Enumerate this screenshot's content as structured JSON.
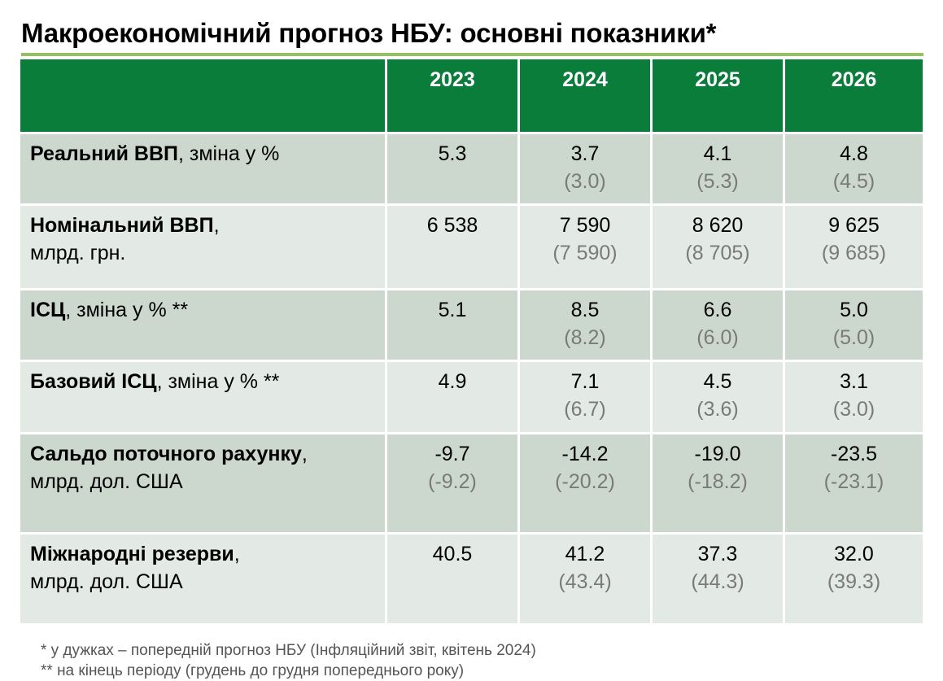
{
  "title": "Макроекономічний прогноз НБУ: основні показники*",
  "colors": {
    "header": "#0a7d3b",
    "rule": "#92c35d",
    "row_dark": "#ccd8cd",
    "row_light": "#e3e9e4"
  },
  "years": [
    "2023",
    "2024",
    "2025",
    "2026"
  ],
  "rows": [
    {
      "name": "Реальний ВВП",
      "unit_inline": ", зміна у %",
      "unit_line": "",
      "values": [
        "5.3",
        "3.7",
        "4.1",
        "4.8"
      ],
      "previous": [
        "",
        "(3.0)",
        "(5.3)",
        "(4.5)"
      ]
    },
    {
      "name": "Номінальний ВВП",
      "unit_inline": ",",
      "unit_line": "млрд. грн.",
      "values": [
        "6 538",
        "7 590",
        "8 620",
        "9 625"
      ],
      "previous": [
        "",
        "(7 590)",
        "(8 705)",
        "(9 685)"
      ]
    },
    {
      "name": "ІСЦ",
      "unit_inline": ", зміна у % **",
      "unit_line": "",
      "values": [
        "5.1",
        "8.5",
        "6.6",
        "5.0"
      ],
      "previous": [
        "",
        "(8.2)",
        "(6.0)",
        "(5.0)"
      ]
    },
    {
      "name": "Базовий ІСЦ",
      "unit_inline": ", зміна у % **",
      "unit_line": "",
      "values": [
        "4.9",
        "7.1",
        "4.5",
        "3.1"
      ],
      "previous": [
        "",
        "(6.7)",
        "(3.6)",
        "(3.0)"
      ]
    },
    {
      "name": "Сальдо поточного рахунку",
      "unit_inline": ",",
      "unit_line": "млрд. дол. США",
      "values": [
        "-9.7",
        "-14.2",
        "-19.0",
        "-23.5"
      ],
      "previous": [
        "(-9.2)",
        "(-20.2)",
        "(-18.2)",
        "(-23.1)"
      ]
    },
    {
      "name": "Міжнародні резерви",
      "unit_inline": ",",
      "unit_line": "млрд. дол. США",
      "values": [
        "40.5",
        "41.2",
        "37.3",
        "32.0"
      ],
      "previous": [
        "",
        "(43.4)",
        "(44.3)",
        "(39.3)"
      ]
    }
  ],
  "footnotes": [
    "* у дужках – попередній прогноз НБУ (Інфляційний звіт, квітень 2024)",
    "** на кінець періоду (грудень до грудня попереднього року)"
  ]
}
